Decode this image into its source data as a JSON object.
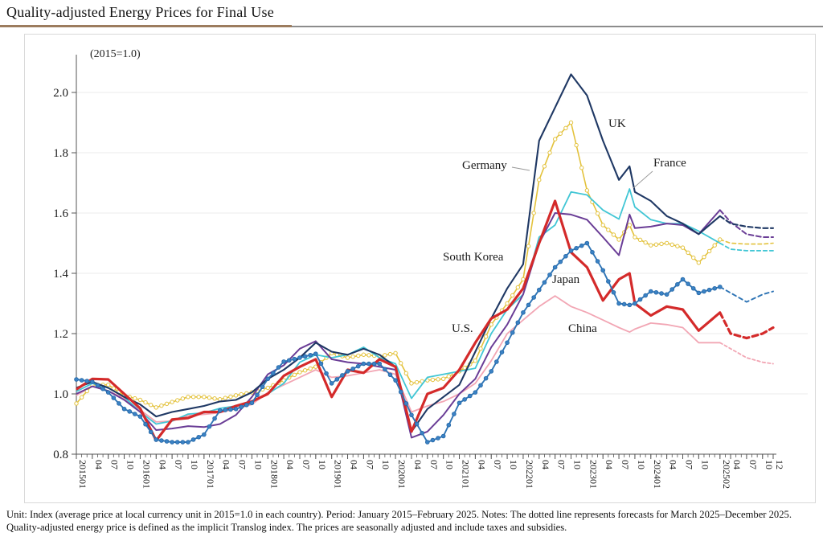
{
  "page": {
    "title": "Quality-adjusted Energy Prices for Final Use",
    "footnote": "Unit: Index (average price at local currency unit in 2015=1.0 in each country). Period: January 2015–February 2025. Notes: The dotted line represents forecasts for March 2025–December 2025. Quality-adjusted energy price is defined as the implicit Translog index. The prices are seasonally adjusted and include taxes and subsidies.",
    "accent_color": "#9c7c5e"
  },
  "chart_data": {
    "type": "line",
    "title": "Quality-adjusted Energy Prices for Final Use",
    "unit_label": "(2015=1.0)",
    "ylim": [
      0.8,
      2.1
    ],
    "yticks": [
      0.8,
      1.0,
      1.2,
      1.4,
      1.6,
      1.8,
      2.0
    ],
    "grid": "horizontal-light",
    "forecast_start_index": 41,
    "forecast_note": "dashed lines are forecasts for 2025-03 to 2025-12",
    "x_months": [
      "2015-01",
      "2015-04",
      "2015-07",
      "2015-10",
      "2016-01",
      "2016-04",
      "2016-07",
      "2016-10",
      "2017-01",
      "2017-04",
      "2017-07",
      "2017-10",
      "2018-01",
      "2018-04",
      "2018-07",
      "2018-10",
      "2019-01",
      "2019-04",
      "2019-07",
      "2019-10",
      "2020-01",
      "2020-04",
      "2020-07",
      "2020-10",
      "2021-01",
      "2021-04",
      "2021-07",
      "2021-10",
      "2022-01",
      "2022-04",
      "2022-07",
      "2022-10",
      "2023-01",
      "2023-04",
      "2023-07",
      "2023-09",
      "2023-10",
      "2024-01",
      "2024-04",
      "2024-07",
      "2024-10",
      "2025-02",
      "2025-04",
      "2025-07",
      "2025-10",
      "2025-12"
    ],
    "x_month_index": [
      0,
      3,
      6,
      9,
      12,
      15,
      18,
      21,
      24,
      27,
      30,
      33,
      36,
      39,
      42,
      45,
      48,
      51,
      54,
      57,
      60,
      63,
      66,
      69,
      72,
      75,
      78,
      81,
      84,
      87,
      90,
      93,
      96,
      99,
      102,
      104,
      105,
      108,
      111,
      114,
      117,
      121,
      123,
      126,
      129,
      131
    ],
    "x_ticks": [
      [
        0,
        "201501"
      ],
      [
        3,
        "04"
      ],
      [
        6,
        "07"
      ],
      [
        9,
        "10"
      ],
      [
        12,
        "201601"
      ],
      [
        15,
        "04"
      ],
      [
        18,
        "07"
      ],
      [
        21,
        "10"
      ],
      [
        24,
        "201701"
      ],
      [
        27,
        "04"
      ],
      [
        30,
        "07"
      ],
      [
        33,
        "10"
      ],
      [
        36,
        "201801"
      ],
      [
        39,
        "04"
      ],
      [
        42,
        "07"
      ],
      [
        45,
        "10"
      ],
      [
        48,
        "201901"
      ],
      [
        51,
        "04"
      ],
      [
        54,
        "07"
      ],
      [
        57,
        "10"
      ],
      [
        60,
        "202001"
      ],
      [
        63,
        "04"
      ],
      [
        66,
        "07"
      ],
      [
        69,
        "10"
      ],
      [
        72,
        "202101"
      ],
      [
        75,
        "04"
      ],
      [
        78,
        "07"
      ],
      [
        81,
        "10"
      ],
      [
        84,
        "202201"
      ],
      [
        87,
        "04"
      ],
      [
        90,
        "07"
      ],
      [
        93,
        "10"
      ],
      [
        96,
        "202301"
      ],
      [
        99,
        "04"
      ],
      [
        102,
        "07"
      ],
      [
        105,
        "10"
      ],
      [
        108,
        "202401"
      ],
      [
        111,
        "04"
      ],
      [
        114,
        "07"
      ],
      [
        117,
        "10"
      ],
      [
        121,
        "202502"
      ],
      [
        123,
        "04"
      ],
      [
        126,
        "07"
      ],
      [
        129,
        "10"
      ],
      [
        131,
        "12"
      ]
    ],
    "series": [
      {
        "name": "China",
        "color": "#f2a6b4",
        "width": 1.8,
        "marker": "none",
        "dash": "3.5 3",
        "values": [
          0.995,
          1.025,
          1.01,
          0.985,
          0.947,
          0.907,
          0.91,
          0.928,
          0.932,
          0.938,
          0.95,
          0.965,
          1.005,
          1.03,
          1.055,
          1.08,
          1.055,
          1.06,
          1.07,
          1.08,
          1.065,
          0.94,
          0.96,
          0.975,
          1.0,
          1.035,
          1.11,
          1.2,
          1.245,
          1.29,
          1.325,
          1.29,
          1.27,
          1.245,
          1.22,
          1.205,
          1.215,
          1.235,
          1.23,
          1.22,
          1.17,
          1.17,
          1.15,
          1.12,
          1.105,
          1.1
        ]
      },
      {
        "name": "Germany",
        "color": "#e3c23c",
        "width": 1.6,
        "marker": "open-circle",
        "dash": "4.5 3.5",
        "values": [
          0.968,
          1.03,
          1.03,
          0.995,
          0.98,
          0.955,
          0.973,
          0.99,
          0.99,
          0.982,
          0.995,
          1.005,
          1.02,
          1.045,
          1.072,
          1.09,
          1.135,
          1.12,
          1.13,
          1.125,
          1.135,
          1.035,
          1.045,
          1.05,
          1.075,
          1.11,
          1.23,
          1.3,
          1.38,
          1.71,
          1.845,
          1.9,
          1.675,
          1.56,
          1.512,
          1.56,
          1.52,
          1.493,
          1.5,
          1.485,
          1.435,
          1.512,
          1.5,
          1.497,
          1.497,
          1.5
        ]
      },
      {
        "name": "France",
        "color": "#41c6d5",
        "width": 1.8,
        "marker": "none",
        "dash": "4.5 3.5",
        "values": [
          1.008,
          1.035,
          1.02,
          0.99,
          0.94,
          0.9,
          0.91,
          0.933,
          0.937,
          0.952,
          0.96,
          0.975,
          1.0,
          1.035,
          1.105,
          1.13,
          1.12,
          1.13,
          1.155,
          1.12,
          1.1,
          0.985,
          1.055,
          1.065,
          1.075,
          1.085,
          1.2,
          1.28,
          1.33,
          1.52,
          1.56,
          1.67,
          1.66,
          1.61,
          1.58,
          1.68,
          1.62,
          1.578,
          1.565,
          1.565,
          1.54,
          1.5,
          1.48,
          1.475,
          1.475,
          1.475
        ]
      },
      {
        "name": "South Korea",
        "color": "#6a3d96",
        "width": 2,
        "marker": "none",
        "dash": "6 3.5",
        "values": [
          1.0,
          1.025,
          1.01,
          0.98,
          0.94,
          0.88,
          0.885,
          0.893,
          0.89,
          0.9,
          0.93,
          0.99,
          1.065,
          1.095,
          1.15,
          1.175,
          1.115,
          1.105,
          1.1,
          1.09,
          1.08,
          0.855,
          0.875,
          0.93,
          1.0,
          1.05,
          1.155,
          1.23,
          1.33,
          1.5,
          1.6,
          1.595,
          1.578,
          1.52,
          1.46,
          1.595,
          1.55,
          1.555,
          1.565,
          1.56,
          1.53,
          1.61,
          1.57,
          1.53,
          1.52,
          1.52
        ]
      },
      {
        "name": "UK",
        "color": "#1f3864",
        "width": 2.1,
        "marker": "none",
        "dash": "6 3.5",
        "values": [
          1.02,
          1.04,
          1.02,
          0.99,
          0.965,
          0.925,
          0.94,
          0.95,
          0.96,
          0.975,
          0.98,
          1.005,
          1.05,
          1.08,
          1.12,
          1.17,
          1.14,
          1.13,
          1.15,
          1.13,
          1.09,
          0.875,
          0.95,
          0.99,
          1.03,
          1.14,
          1.25,
          1.35,
          1.43,
          1.84,
          1.95,
          2.06,
          1.99,
          1.84,
          1.71,
          1.755,
          1.67,
          1.64,
          1.59,
          1.565,
          1.53,
          1.59,
          1.565,
          1.555,
          1.55,
          1.55
        ]
      },
      {
        "name": "U.S.",
        "color": "#d42a2a",
        "width": 3.2,
        "marker": "none",
        "dash": "7 4.5",
        "values": [
          1.015,
          1.05,
          1.048,
          1.0,
          0.952,
          0.845,
          0.915,
          0.92,
          0.94,
          0.94,
          0.96,
          0.975,
          1.0,
          1.06,
          1.09,
          1.115,
          0.99,
          1.08,
          1.07,
          1.115,
          1.09,
          0.875,
          1.0,
          1.02,
          1.08,
          1.17,
          1.25,
          1.28,
          1.35,
          1.5,
          1.64,
          1.47,
          1.42,
          1.31,
          1.38,
          1.4,
          1.3,
          1.26,
          1.29,
          1.28,
          1.21,
          1.27,
          1.2,
          1.185,
          1.2,
          1.22
        ]
      },
      {
        "name": "Japan",
        "color": "#2e74b5",
        "width": 1.9,
        "marker": "filled-circle",
        "dash": "5 4",
        "values": [
          1.048,
          1.04,
          1.005,
          0.95,
          0.925,
          0.848,
          0.84,
          0.84,
          0.865,
          0.945,
          0.95,
          0.97,
          1.05,
          1.107,
          1.12,
          1.133,
          1.035,
          1.075,
          1.1,
          1.1,
          1.045,
          0.93,
          0.84,
          0.86,
          0.97,
          1.005,
          1.075,
          1.17,
          1.27,
          1.345,
          1.42,
          1.475,
          1.5,
          1.41,
          1.3,
          1.295,
          1.3,
          1.34,
          1.33,
          1.38,
          1.335,
          1.355,
          1.335,
          1.305,
          1.33,
          1.34
        ]
      }
    ],
    "annotations": [
      {
        "text": "UK",
        "x": 757,
        "y": 146
      },
      {
        "text": "Germany",
        "x": 575,
        "y": 198,
        "pointer": [
          637,
          208,
          659,
          212
        ]
      },
      {
        "text": "France",
        "x": 813,
        "y": 195,
        "pointer": [
          812,
          213,
          788,
          234
        ]
      },
      {
        "text": "South Korea",
        "x": 551,
        "y": 312
      },
      {
        "text": "Japan",
        "x": 687,
        "y": 340
      },
      {
        "text": "U.S.",
        "x": 562,
        "y": 401
      },
      {
        "text": "China",
        "x": 707,
        "y": 401
      }
    ]
  }
}
